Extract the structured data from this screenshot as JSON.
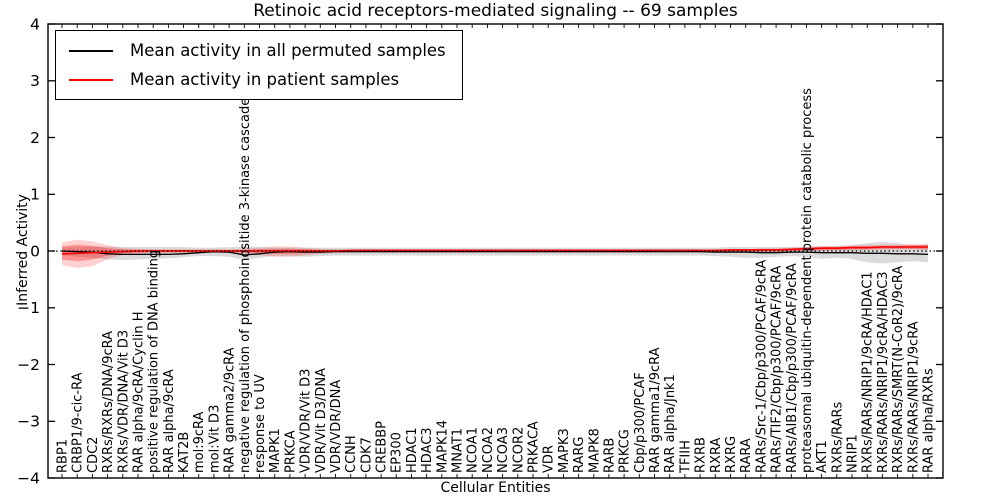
{
  "chart_data": {
    "type": "line",
    "title": "Retinoic acid receptors-mediated signaling -- 69 samples",
    "xlabel": "Cellular Entities",
    "ylabel": "Inferred Activity",
    "ylim": [
      -4,
      4
    ],
    "grid": false,
    "legend_position": "upper left",
    "zero_line": {
      "y": 0,
      "style": "dotted",
      "color": "#000000"
    },
    "frame_color": "#000000",
    "yticks": [
      {
        "v": 4,
        "label": "4"
      },
      {
        "v": 3,
        "label": "3"
      },
      {
        "v": 2,
        "label": "2"
      },
      {
        "v": 1,
        "label": "1"
      },
      {
        "v": 0,
        "label": "0"
      },
      {
        "v": -1,
        "label": "−1"
      },
      {
        "v": -2,
        "label": "−2"
      },
      {
        "v": -3,
        "label": "−3"
      },
      {
        "v": -4,
        "label": "−4"
      }
    ],
    "categories": [
      "RBP1",
      "CRBP1/9-cic-RA",
      "CDC2",
      "RXRs/RXRs/DNA/9cRA",
      "RXRs/VDR/DNA/Vit D3",
      "RAR alpha/9cRA/Cyclin H",
      "positive regulation of DNA binding",
      "RAR alpha/9cRA",
      "KAT2B",
      "mol:9cRA",
      "mol:Vit D3",
      "RAR gamma2/9cRA",
      "negative regulation of phosphoinositide 3-kinase cascade",
      "response to UV",
      "MAPK1",
      "PRKCA",
      "VDR/VDR/Vit D3",
      "VDR/Vit D3/DNA",
      "VDR/VDR/DNA",
      "CCNH",
      "CDK7",
      "CREBBP",
      "EP300",
      "HDAC1",
      "HDAC3",
      "MAPK14",
      "MNAT1",
      "NCOA1",
      "NCOA2",
      "NCOA3",
      "NCOR2",
      "PRKACA",
      "VDR",
      "MAPK3",
      "RARG",
      "MAPK8",
      "RARB",
      "PRKCG",
      "Cbp/p300/PCAF",
      "RAR gamma1/9cRA",
      "RAR alpha/Jnk1",
      "TFIIH",
      "RXRB",
      "RXRA",
      "RXRG",
      "RARA",
      "RARs/Src-1/Cbp/p300/PCAF/9cRA",
      "RARs/TIF2/Cbp/p300/PCAF/9cRA",
      "RARs/AIB1/Cbp/p300/PCAF/9cRA",
      "proteasomal ubiquitin-dependent protein catabolic process",
      "AKT1",
      "RXRs/RARs",
      "NRIP1",
      "RXRs/RARs/NRIP1/9cRA/HDAC1",
      "RXRs/RARs/NRIP1/9cRA/HDAC3",
      "RXRs/RARs/SMRT(N-CoR2)/9cRA",
      "RXRs/RARs/NRIP1/9cRA",
      "RAR alpha/RXRs"
    ],
    "series": [
      {
        "name": "Mean activity in all permuted samples",
        "color": "#000000",
        "values": [
          0.0,
          -0.01,
          -0.02,
          -0.05,
          -0.06,
          -0.06,
          -0.06,
          -0.06,
          -0.05,
          -0.03,
          -0.01,
          -0.02,
          -0.07,
          -0.05,
          -0.02,
          -0.01,
          -0.02,
          -0.02,
          -0.01,
          -0.01,
          -0.01,
          -0.01,
          -0.01,
          -0.01,
          -0.01,
          -0.01,
          -0.01,
          -0.01,
          -0.01,
          -0.01,
          -0.01,
          -0.01,
          -0.01,
          -0.01,
          -0.01,
          -0.01,
          -0.01,
          -0.01,
          -0.01,
          -0.01,
          -0.01,
          -0.01,
          -0.01,
          -0.02,
          -0.02,
          -0.02,
          -0.03,
          -0.03,
          -0.02,
          -0.02,
          -0.03,
          -0.03,
          -0.03,
          -0.04,
          -0.04,
          -0.05,
          -0.05,
          -0.06
        ]
      },
      {
        "name": "Mean activity in patient samples",
        "color": "#ff0000",
        "values": [
          -0.05,
          -0.04,
          -0.03,
          -0.02,
          -0.01,
          0.0,
          0.0,
          0.0,
          0.0,
          0.0,
          0.0,
          0.0,
          0.0,
          0.0,
          0.0,
          0.0,
          0.0,
          0.0,
          0.0,
          0.01,
          0.01,
          0.01,
          0.01,
          0.01,
          0.01,
          0.01,
          0.01,
          0.01,
          0.01,
          0.01,
          0.01,
          0.01,
          0.01,
          0.01,
          0.01,
          0.01,
          0.01,
          0.01,
          0.01,
          0.01,
          0.01,
          0.01,
          0.01,
          0.01,
          0.02,
          0.02,
          0.02,
          0.02,
          0.03,
          0.04,
          0.05,
          0.05,
          0.06,
          0.06,
          0.07,
          0.07,
          0.07,
          0.07
        ]
      }
    ],
    "bands": [
      {
        "name": "permuted-range",
        "color": "#999999",
        "opacity": 0.35,
        "low": [
          -0.08,
          -0.1,
          -0.12,
          -0.15,
          -0.16,
          -0.15,
          -0.14,
          -0.13,
          -0.11,
          -0.09,
          -0.09,
          -0.1,
          -0.16,
          -0.12,
          -0.09,
          -0.09,
          -0.1,
          -0.09,
          -0.08,
          -0.08,
          -0.08,
          -0.08,
          -0.08,
          -0.08,
          -0.08,
          -0.08,
          -0.08,
          -0.08,
          -0.08,
          -0.08,
          -0.08,
          -0.08,
          -0.08,
          -0.08,
          -0.08,
          -0.08,
          -0.08,
          -0.08,
          -0.08,
          -0.08,
          -0.08,
          -0.08,
          -0.08,
          -0.09,
          -0.1,
          -0.12,
          -0.12,
          -0.1,
          -0.09,
          -0.1,
          -0.14,
          -0.12,
          -0.14,
          -0.2,
          -0.22,
          -0.2,
          -0.18,
          -0.2
        ],
        "high": [
          0.06,
          0.07,
          0.08,
          0.08,
          0.07,
          0.07,
          0.07,
          0.07,
          0.07,
          0.06,
          0.06,
          0.07,
          0.08,
          0.07,
          0.06,
          0.06,
          0.06,
          0.06,
          0.06,
          0.06,
          0.06,
          0.06,
          0.06,
          0.06,
          0.06,
          0.06,
          0.06,
          0.06,
          0.06,
          0.06,
          0.06,
          0.06,
          0.06,
          0.06,
          0.06,
          0.06,
          0.06,
          0.06,
          0.06,
          0.06,
          0.06,
          0.06,
          0.06,
          0.06,
          0.07,
          0.07,
          0.07,
          0.07,
          0.07,
          0.07,
          0.08,
          0.08,
          0.1,
          0.14,
          0.16,
          0.14,
          0.1,
          0.12
        ]
      },
      {
        "name": "patient-outer",
        "color": "#ff0000",
        "opacity": 0.18,
        "low": [
          -0.25,
          -0.3,
          -0.27,
          -0.14,
          -0.07,
          -0.05,
          -0.04,
          -0.04,
          -0.04,
          -0.04,
          -0.04,
          -0.04,
          -0.05,
          -0.07,
          -0.1,
          -0.1,
          -0.08,
          -0.05,
          -0.04,
          -0.03,
          -0.03,
          -0.03,
          -0.03,
          -0.03,
          -0.03,
          -0.03,
          -0.03,
          -0.03,
          -0.03,
          -0.03,
          -0.03,
          -0.03,
          -0.03,
          -0.03,
          -0.03,
          -0.03,
          -0.03,
          -0.03,
          -0.03,
          -0.03,
          -0.03,
          -0.03,
          -0.03,
          -0.03,
          -0.03,
          -0.03,
          -0.02,
          -0.02,
          -0.01,
          0.0,
          0.0,
          0.01,
          0.01,
          0.02,
          0.02,
          0.03,
          0.03,
          0.02
        ],
        "high": [
          0.15,
          0.2,
          0.17,
          0.1,
          0.05,
          0.04,
          0.03,
          0.03,
          0.03,
          0.03,
          0.03,
          0.03,
          0.04,
          0.06,
          0.08,
          0.08,
          0.06,
          0.04,
          0.03,
          0.03,
          0.03,
          0.03,
          0.03,
          0.03,
          0.03,
          0.03,
          0.03,
          0.03,
          0.03,
          0.03,
          0.03,
          0.03,
          0.03,
          0.03,
          0.03,
          0.03,
          0.03,
          0.03,
          0.03,
          0.03,
          0.03,
          0.03,
          0.03,
          0.03,
          0.03,
          0.03,
          0.05,
          0.05,
          0.06,
          0.07,
          0.09,
          0.09,
          0.1,
          0.1,
          0.11,
          0.11,
          0.12,
          0.12
        ]
      },
      {
        "name": "patient-inner",
        "color": "#ff0000",
        "opacity": 0.3,
        "low": [
          -0.15,
          -0.18,
          -0.15,
          -0.08,
          -0.04,
          -0.03,
          -0.02,
          -0.02,
          -0.02,
          -0.02,
          -0.02,
          -0.02,
          -0.03,
          -0.04,
          -0.05,
          -0.05,
          -0.04,
          -0.03,
          -0.02,
          -0.02,
          -0.02,
          -0.02,
          -0.02,
          -0.02,
          -0.02,
          -0.02,
          -0.02,
          -0.02,
          -0.02,
          -0.02,
          -0.02,
          -0.02,
          -0.02,
          -0.02,
          -0.02,
          -0.02,
          -0.02,
          -0.02,
          -0.02,
          -0.02,
          -0.02,
          -0.02,
          -0.02,
          -0.02,
          -0.02,
          -0.02,
          -0.01,
          -0.01,
          0.0,
          0.01,
          0.02,
          0.02,
          0.03,
          0.03,
          0.04,
          0.04,
          0.04,
          0.04
        ],
        "high": [
          0.08,
          0.11,
          0.09,
          0.05,
          0.03,
          0.02,
          0.02,
          0.02,
          0.02,
          0.02,
          0.02,
          0.02,
          0.02,
          0.03,
          0.04,
          0.04,
          0.03,
          0.02,
          0.02,
          0.02,
          0.02,
          0.02,
          0.02,
          0.02,
          0.02,
          0.02,
          0.02,
          0.02,
          0.02,
          0.02,
          0.02,
          0.02,
          0.02,
          0.02,
          0.02,
          0.02,
          0.02,
          0.02,
          0.02,
          0.02,
          0.02,
          0.02,
          0.02,
          0.02,
          0.02,
          0.02,
          0.03,
          0.03,
          0.04,
          0.05,
          0.07,
          0.07,
          0.08,
          0.08,
          0.09,
          0.09,
          0.1,
          0.1
        ]
      }
    ]
  }
}
